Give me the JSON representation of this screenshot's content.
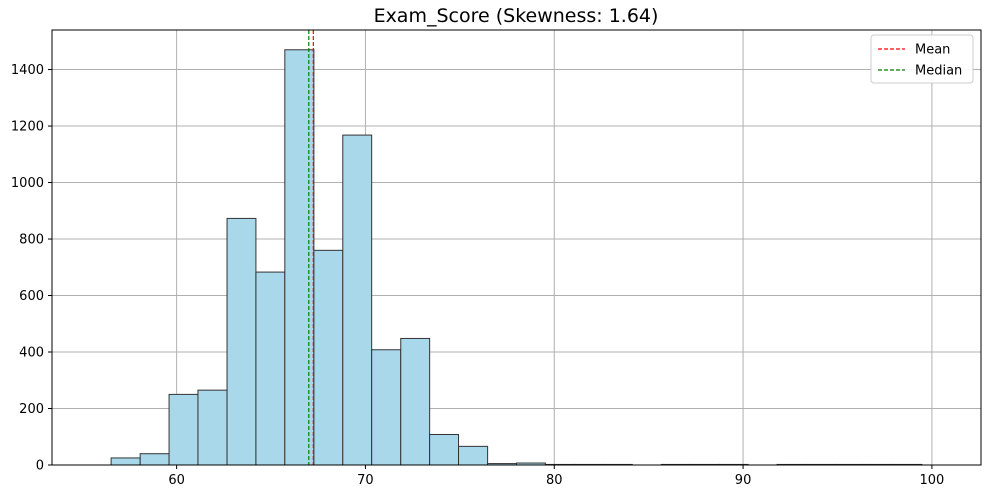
{
  "chart_data": {
    "type": "histogram",
    "title": "Exam_Score (Skewness: 1.64)",
    "xlabel": "",
    "ylabel": "",
    "xlim": [
      53.4,
      102.6
    ],
    "ylim": [
      0,
      1540
    ],
    "x_ticks": [
      60,
      70,
      80,
      90,
      100
    ],
    "y_ticks": [
      0,
      200,
      400,
      600,
      800,
      1000,
      1200,
      1400
    ],
    "grid": true,
    "bar_color": "#a8d8ea",
    "bar_edge_color": "#333333",
    "bins": [
      {
        "x0": 55.0,
        "x1": 56.53,
        "count": 0
      },
      {
        "x0": 56.53,
        "x1": 58.07,
        "count": 25
      },
      {
        "x0": 58.07,
        "x1": 59.6,
        "count": 40
      },
      {
        "x0": 59.6,
        "x1": 61.13,
        "count": 250
      },
      {
        "x0": 61.13,
        "x1": 62.67,
        "count": 265
      },
      {
        "x0": 62.67,
        "x1": 64.2,
        "count": 873
      },
      {
        "x0": 64.2,
        "x1": 65.73,
        "count": 683
      },
      {
        "x0": 65.73,
        "x1": 67.27,
        "count": 1470
      },
      {
        "x0": 67.27,
        "x1": 68.8,
        "count": 760
      },
      {
        "x0": 68.8,
        "x1": 70.33,
        "count": 1168
      },
      {
        "x0": 70.33,
        "x1": 71.87,
        "count": 408
      },
      {
        "x0": 71.87,
        "x1": 73.4,
        "count": 448
      },
      {
        "x0": 73.4,
        "x1": 74.93,
        "count": 108
      },
      {
        "x0": 74.93,
        "x1": 76.47,
        "count": 66
      },
      {
        "x0": 76.47,
        "x1": 78.0,
        "count": 5
      },
      {
        "x0": 78.0,
        "x1": 79.53,
        "count": 7
      },
      {
        "x0": 79.53,
        "x1": 81.07,
        "count": 2
      },
      {
        "x0": 81.07,
        "x1": 82.6,
        "count": 2
      },
      {
        "x0": 82.6,
        "x1": 84.13,
        "count": 2
      },
      {
        "x0": 84.13,
        "x1": 85.67,
        "count": 0
      },
      {
        "x0": 85.67,
        "x1": 87.2,
        "count": 2
      },
      {
        "x0": 87.2,
        "x1": 88.73,
        "count": 2
      },
      {
        "x0": 88.73,
        "x1": 90.27,
        "count": 2
      },
      {
        "x0": 90.27,
        "x1": 91.8,
        "count": 0
      },
      {
        "x0": 91.8,
        "x1": 93.33,
        "count": 2
      },
      {
        "x0": 93.33,
        "x1": 94.87,
        "count": 2
      },
      {
        "x0": 94.87,
        "x1": 96.4,
        "count": 2
      },
      {
        "x0": 96.4,
        "x1": 97.93,
        "count": 2
      },
      {
        "x0": 97.93,
        "x1": 99.47,
        "count": 2
      },
      {
        "x0": 99.47,
        "x1": 101.0,
        "count": 0
      }
    ],
    "reference_lines": [
      {
        "name": "Mean",
        "value": 67.24,
        "color": "#ff0000",
        "style": "dashed"
      },
      {
        "name": "Median",
        "value": 67.0,
        "color": "#008000",
        "style": "dashed"
      }
    ],
    "legend": {
      "placement": "top-right",
      "entries": [
        {
          "label": "Mean",
          "color": "#ff0000"
        },
        {
          "label": "Median",
          "color": "#008000"
        }
      ]
    }
  }
}
